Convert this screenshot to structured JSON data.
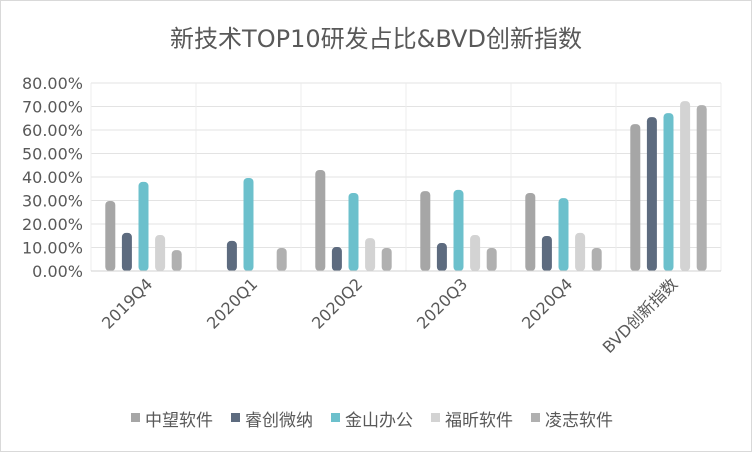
{
  "chart_data": {
    "type": "bar",
    "title": "新技术TOP10研发占比&BVD创新指数",
    "xlabel": "",
    "ylabel": "",
    "ylim": [
      0,
      80
    ],
    "yticks": [
      "0.00%",
      "10.00%",
      "20.00%",
      "30.00%",
      "40.00%",
      "50.00%",
      "60.00%",
      "70.00%",
      "80.00%"
    ],
    "grid": true,
    "legend_position": "bottom",
    "categories": [
      "2019Q4",
      "2020Q1",
      "2020Q2",
      "2020Q3",
      "2020Q4",
      "BVD创新指数"
    ],
    "series": [
      {
        "name": "中望软件",
        "color": "#a6a6a6",
        "values": [
          29.8,
          null,
          43.0,
          34.0,
          33.2,
          62.5
        ]
      },
      {
        "name": "睿创微纳",
        "color": "#5d6b7f",
        "values": [
          16.2,
          12.8,
          10.2,
          11.9,
          14.9,
          65.5
        ]
      },
      {
        "name": "金山办公",
        "color": "#6cc0cc",
        "values": [
          37.9,
          39.6,
          33.2,
          34.5,
          31.0,
          67.2
        ]
      },
      {
        "name": "福昕软件",
        "color": "#d3d3d3",
        "values": [
          15.3,
          null,
          14.0,
          15.3,
          16.2,
          72.3
        ]
      },
      {
        "name": "凌志软件",
        "color": "#b0b0b0",
        "values": [
          8.9,
          9.8,
          9.8,
          9.8,
          9.8,
          70.6
        ]
      }
    ]
  }
}
